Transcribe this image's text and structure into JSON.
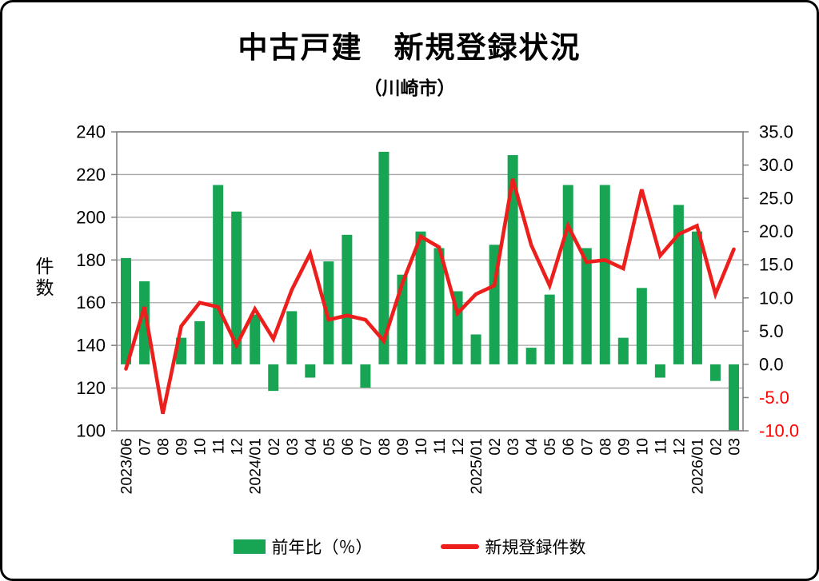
{
  "chart": {
    "title": "中古戸建　新規登録状況",
    "subtitle": "（川崎市）",
    "y_left_label": "件数",
    "legend": [
      {
        "label": "前年比（％）",
        "type": "bar",
        "color": "#17a453"
      },
      {
        "label": "新規登録件数",
        "type": "line",
        "color": "#ec1f1c"
      }
    ]
  },
  "chart_data": {
    "type": "bar+line",
    "title": "中古戸建　新規登録状況",
    "subtitle": "（川崎市）",
    "grid": true,
    "legend_position": "bottom",
    "categories": [
      "2023/06",
      "07",
      "08",
      "09",
      "10",
      "11",
      "12",
      "2024/01",
      "02",
      "03",
      "04",
      "05",
      "06",
      "07",
      "08",
      "09",
      "10",
      "11",
      "12",
      "2025/01",
      "02",
      "03",
      "04",
      "05",
      "06",
      "07",
      "08",
      "09",
      "10",
      "11",
      "12",
      "2026/01",
      "02",
      "03"
    ],
    "series": [
      {
        "name": "前年比（％）",
        "type": "bar",
        "axis": "right",
        "color": "#17a453",
        "values": [
          16,
          12.5,
          0,
          4,
          6.5,
          27,
          23,
          7.5,
          -4,
          8,
          -2,
          15.5,
          19.5,
          -3.5,
          32,
          13.5,
          20,
          17.5,
          11,
          4.5,
          18,
          31.5,
          2.5,
          10.5,
          27,
          17.5,
          27,
          4,
          11.5,
          -2,
          24,
          20,
          -2.5,
          -10
        ]
      },
      {
        "name": "新規登録件数",
        "type": "line",
        "axis": "left",
        "color": "#ec1f1c",
        "values": [
          129,
          158,
          108,
          149,
          160,
          158,
          140,
          157,
          143,
          166,
          183,
          152,
          154,
          152,
          142,
          169,
          191,
          186,
          155,
          164,
          168,
          218,
          187,
          168,
          196,
          179,
          180,
          176,
          213,
          182,
          192,
          196,
          164,
          185
        ]
      }
    ],
    "left_axis": {
      "label": "件数",
      "min": 100,
      "max": 240,
      "ticks": [
        240,
        220,
        200,
        180,
        160,
        140,
        120,
        100
      ]
    },
    "right_axis": {
      "min": -10,
      "max": 35,
      "ticks": [
        "35.0",
        "30.0",
        "25.0",
        "20.0",
        "15.0",
        "10.0",
        "5.0",
        "0.0",
        "-5.0",
        "-10.0"
      ],
      "negative_tick_color": "#ff0000"
    },
    "colors": {
      "gridline": "#a6a6a6",
      "plot_border": "#808080",
      "bar": "#17a453",
      "line": "#ec1f1c"
    }
  }
}
